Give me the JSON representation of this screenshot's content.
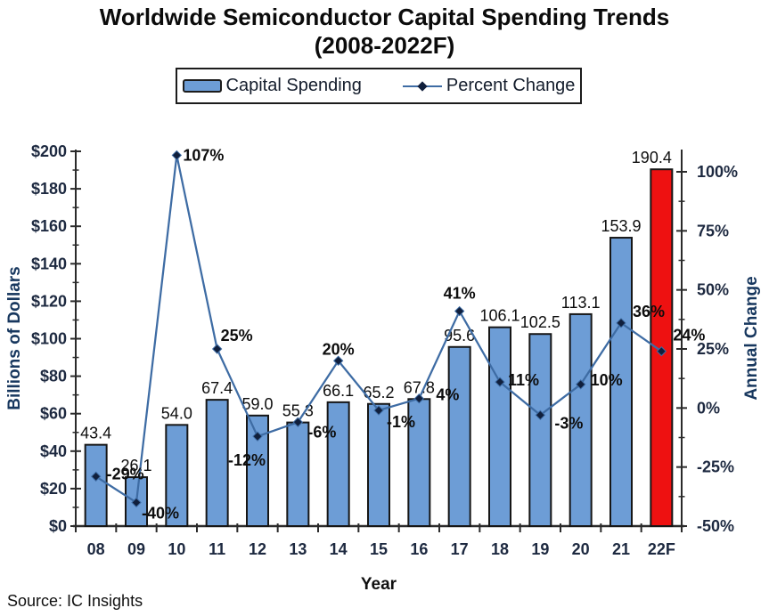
{
  "title": {
    "line1": "Worldwide Semiconductor Capital Spending Trends",
    "line2": "(2008-2022F)"
  },
  "legend": {
    "items": [
      {
        "label": "Capital Spending",
        "swatch": "bar"
      },
      {
        "label": "Percent Change",
        "swatch": "line"
      }
    ]
  },
  "source": "Source: IC Insights",
  "colors": {
    "bar": "#6D9DD6",
    "bar_border": "#161616",
    "forecast_bar": "#EE1111",
    "line": "#3E6CA4",
    "marker": "#101F3C",
    "axis": "#2B2B2B",
    "tick_label": "#1D2940",
    "axis_title": "#17375E",
    "value_label": "#0D0D0D",
    "pct_label": "#0D0D0D"
  },
  "chart_data": {
    "type": "bar+line combo (dual axis)",
    "title": "Worldwide Semiconductor Capital Spending Trends (2008-2022F)",
    "categories": [
      "08",
      "09",
      "10",
      "11",
      "12",
      "13",
      "14",
      "15",
      "16",
      "17",
      "18",
      "19",
      "20",
      "21",
      "22F"
    ],
    "series": [
      {
        "name": "Capital Spending",
        "type": "bar",
        "axis": "left",
        "values": [
          43.4,
          26.1,
          54.0,
          67.4,
          59.0,
          55.3,
          66.1,
          65.2,
          67.8,
          95.6,
          106.1,
          102.5,
          113.1,
          153.9,
          190.4
        ],
        "value_labels": [
          "43.4",
          "26.1",
          "54.0",
          "67.4",
          "59.0",
          "55.3",
          "66.1",
          "65.2",
          "67.8",
          "95.6",
          "106.1",
          "102.5",
          "113.1",
          "153.9",
          "190.4"
        ]
      },
      {
        "name": "Percent Change",
        "type": "line",
        "axis": "right",
        "values": [
          -29,
          -40,
          107,
          25,
          -12,
          -6,
          20,
          -1,
          4,
          41,
          11,
          -3,
          10,
          36,
          24
        ],
        "value_labels": [
          "-29%",
          "-40%",
          "107%",
          "25%",
          "-12%",
          "-6%",
          "20%",
          "-1%",
          "4%",
          "41%",
          "11%",
          "-3%",
          "10%",
          "36%",
          "24%"
        ]
      }
    ],
    "xlabel": "Year",
    "left_axis": {
      "label": "Billions of Dollars",
      "min": 0,
      "max": 200,
      "major_step": 20,
      "minor_step": 10,
      "tick_labels": [
        "$0",
        "$20",
        "$40",
        "$60",
        "$80",
        "$100",
        "$120",
        "$140",
        "$160",
        "$180",
        "$200"
      ]
    },
    "right_axis": {
      "label": "Annual Change",
      "min": -50,
      "max": 100,
      "major_step": 25,
      "minor_step": 12.5,
      "tick_labels": [
        "-50%",
        "-25%",
        "0%",
        "25%",
        "50%",
        "75%",
        "100%"
      ]
    },
    "forecast_index": 14,
    "grid": false,
    "legend_position": "top-center",
    "pct_label_layout": [
      [
        12,
        3,
        "start"
      ],
      [
        6,
        18,
        "start"
      ],
      [
        7,
        6,
        "start"
      ],
      [
        4,
        -9,
        "start"
      ],
      [
        -12,
        33,
        "middle"
      ],
      [
        11,
        17,
        "start"
      ],
      [
        0,
        -7,
        "middle"
      ],
      [
        9,
        19,
        "start"
      ],
      [
        19,
        2,
        "start"
      ],
      [
        0,
        -14,
        "middle"
      ],
      [
        9,
        4,
        "start"
      ],
      [
        16,
        15,
        "start"
      ],
      [
        11,
        1,
        "start"
      ],
      [
        13,
        -7,
        "start"
      ],
      [
        13,
        -12,
        "start"
      ]
    ],
    "value_label_dx": [
      0,
      0,
      0,
      0,
      0,
      0,
      0,
      0,
      0,
      0,
      0,
      0,
      0,
      0,
      -11
    ]
  }
}
